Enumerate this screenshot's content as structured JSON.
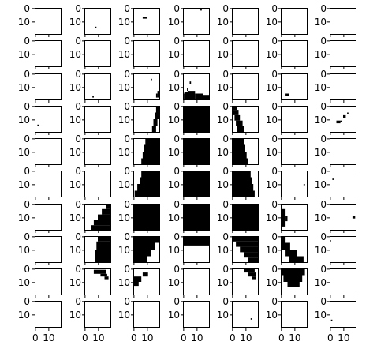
{
  "chart_data": {
    "type": "heatmap",
    "rows": 10,
    "cols": 7,
    "image_size": 20,
    "tick_labels": [
      "0",
      "10"
    ],
    "tick_values": [
      0,
      10
    ],
    "axis_range": [
      -0.5,
      19.5
    ],
    "title": "",
    "xlabel": "",
    "ylabel": "",
    "colormap": {
      "black_value": 1,
      "white_value": 0
    },
    "panels": [
      {
        "row": 0,
        "col": 0,
        "boxes": []
      },
      {
        "row": 0,
        "col": 1,
        "boxes": [
          [
            8,
            14,
            1,
            1
          ]
        ]
      },
      {
        "row": 0,
        "col": 2,
        "boxes": [
          [
            7,
            7,
            3,
            1
          ]
        ]
      },
      {
        "row": 0,
        "col": 3,
        "boxes": [
          [
            13,
            1,
            1,
            1
          ]
        ]
      },
      {
        "row": 0,
        "col": 4,
        "boxes": []
      },
      {
        "row": 0,
        "col": 5,
        "boxes": []
      },
      {
        "row": 0,
        "col": 6,
        "boxes": []
      },
      {
        "row": 1,
        "col": 0,
        "boxes": []
      },
      {
        "row": 1,
        "col": 1,
        "boxes": []
      },
      {
        "row": 1,
        "col": 2,
        "boxes": []
      },
      {
        "row": 1,
        "col": 3,
        "boxes": []
      },
      {
        "row": 1,
        "col": 4,
        "boxes": []
      },
      {
        "row": 1,
        "col": 5,
        "boxes": []
      },
      {
        "row": 1,
        "col": 6,
        "boxes": []
      },
      {
        "row": 2,
        "col": 0,
        "boxes": []
      },
      {
        "row": 2,
        "col": 1,
        "boxes": [
          [
            6,
            17,
            1,
            1
          ]
        ]
      },
      {
        "row": 2,
        "col": 2,
        "boxes": [
          [
            13,
            4,
            1,
            1
          ],
          [
            17,
            15,
            1,
            3
          ],
          [
            18,
            13,
            1,
            5
          ],
          [
            19,
            10,
            1,
            10
          ]
        ]
      },
      {
        "row": 2,
        "col": 3,
        "boxes": [
          [
            5,
            6,
            1,
            2
          ],
          [
            3,
            11,
            1,
            2
          ],
          [
            0,
            15,
            1,
            5
          ],
          [
            1,
            14,
            3,
            6
          ],
          [
            4,
            13,
            5,
            7
          ],
          [
            9,
            15,
            6,
            5
          ],
          [
            15,
            16,
            5,
            4
          ]
        ]
      },
      {
        "row": 2,
        "col": 4,
        "boxes": []
      },
      {
        "row": 2,
        "col": 5,
        "boxes": [
          [
            3,
            15,
            3,
            2
          ]
        ]
      },
      {
        "row": 2,
        "col": 6,
        "boxes": []
      },
      {
        "row": 3,
        "col": 0,
        "boxes": [
          [
            2,
            14,
            1,
            1
          ]
        ]
      },
      {
        "row": 3,
        "col": 1,
        "boxes": []
      },
      {
        "row": 3,
        "col": 2,
        "boxes": [
          [
            14,
            15,
            3,
            5
          ],
          [
            15,
            10,
            3,
            5
          ],
          [
            16,
            5,
            3,
            5
          ],
          [
            17,
            0,
            3,
            5
          ],
          [
            20,
            0,
            0,
            0
          ]
        ]
      },
      {
        "row": 3,
        "col": 3,
        "boxes": [
          [
            0,
            0,
            20,
            20
          ]
        ]
      },
      {
        "row": 3,
        "col": 4,
        "boxes": [
          [
            0,
            0,
            4,
            3
          ],
          [
            1,
            3,
            4,
            4
          ],
          [
            2,
            7,
            4,
            4
          ],
          [
            3,
            11,
            5,
            4
          ],
          [
            4,
            15,
            5,
            5
          ]
        ]
      },
      {
        "row": 3,
        "col": 5,
        "boxes": []
      },
      {
        "row": 3,
        "col": 6,
        "boxes": [
          [
            5,
            11,
            3,
            2
          ],
          [
            8,
            11,
            1,
            1
          ],
          [
            10,
            7,
            2,
            2
          ],
          [
            13,
            5,
            1,
            1
          ]
        ]
      },
      {
        "row": 4,
        "col": 0,
        "boxes": []
      },
      {
        "row": 4,
        "col": 1,
        "boxes": []
      },
      {
        "row": 4,
        "col": 2,
        "boxes": [
          [
            9,
            0,
            11,
            5
          ],
          [
            8,
            5,
            12,
            5
          ],
          [
            7,
            10,
            13,
            5
          ],
          [
            6,
            15,
            14,
            5
          ]
        ]
      },
      {
        "row": 4,
        "col": 3,
        "boxes": [
          [
            0,
            0,
            20,
            20
          ]
        ]
      },
      {
        "row": 4,
        "col": 4,
        "boxes": [
          [
            0,
            0,
            9,
            5
          ],
          [
            0,
            5,
            10,
            5
          ],
          [
            0,
            10,
            11,
            5
          ],
          [
            0,
            15,
            12,
            5
          ]
        ]
      },
      {
        "row": 4,
        "col": 5,
        "boxes": []
      },
      {
        "row": 4,
        "col": 6,
        "boxes": []
      },
      {
        "row": 5,
        "col": 0,
        "boxes": []
      },
      {
        "row": 5,
        "col": 1,
        "boxes": [
          [
            19,
            15,
            1,
            5
          ]
        ]
      },
      {
        "row": 5,
        "col": 2,
        "boxes": [
          [
            6,
            0,
            14,
            5
          ],
          [
            5,
            5,
            15,
            5
          ],
          [
            3,
            10,
            17,
            5
          ],
          [
            1,
            15,
            19,
            5
          ]
        ]
      },
      {
        "row": 5,
        "col": 3,
        "boxes": [
          [
            0,
            0,
            20,
            20
          ]
        ]
      },
      {
        "row": 5,
        "col": 4,
        "boxes": [
          [
            0,
            0,
            14,
            5
          ],
          [
            0,
            5,
            15,
            5
          ],
          [
            0,
            10,
            16,
            5
          ],
          [
            0,
            15,
            17,
            5
          ]
        ]
      },
      {
        "row": 5,
        "col": 5,
        "boxes": [
          [
            17,
            10,
            1,
            1
          ]
        ]
      },
      {
        "row": 5,
        "col": 6,
        "boxes": [
          [
            2,
            6,
            1,
            1
          ]
        ]
      },
      {
        "row": 6,
        "col": 0,
        "boxes": []
      },
      {
        "row": 6,
        "col": 1,
        "boxes": [
          [
            16,
            0,
            4,
            4
          ],
          [
            13,
            4,
            7,
            4
          ],
          [
            10,
            8,
            10,
            4
          ],
          [
            7,
            12,
            13,
            4
          ],
          [
            5,
            16,
            15,
            4
          ]
        ]
      },
      {
        "row": 6,
        "col": 2,
        "boxes": [
          [
            0,
            0,
            20,
            20
          ]
        ]
      },
      {
        "row": 6,
        "col": 3,
        "boxes": [
          [
            0,
            0,
            20,
            20
          ]
        ]
      },
      {
        "row": 6,
        "col": 4,
        "boxes": [
          [
            0,
            0,
            20,
            20
          ]
        ]
      },
      {
        "row": 6,
        "col": 5,
        "boxes": [
          [
            0,
            4,
            3,
            13
          ],
          [
            3,
            9,
            2,
            4
          ]
        ]
      },
      {
        "row": 6,
        "col": 6,
        "boxes": [
          [
            17,
            9,
            2,
            2
          ]
        ]
      },
      {
        "row": 7,
        "col": 0,
        "boxes": []
      },
      {
        "row": 7,
        "col": 1,
        "boxes": [
          [
            10,
            0,
            10,
            4
          ],
          [
            9,
            4,
            11,
            6
          ],
          [
            8,
            10,
            12,
            10
          ]
        ]
      },
      {
        "row": 7,
        "col": 2,
        "boxes": [
          [
            0,
            0,
            20,
            5
          ],
          [
            0,
            5,
            16,
            5
          ],
          [
            0,
            10,
            13,
            5
          ],
          [
            0,
            15,
            10,
            5
          ]
        ]
      },
      {
        "row": 7,
        "col": 3,
        "boxes": [
          [
            0,
            0,
            20,
            7
          ]
        ]
      },
      {
        "row": 7,
        "col": 4,
        "boxes": [
          [
            0,
            0,
            20,
            4
          ],
          [
            3,
            4,
            17,
            4
          ],
          [
            6,
            8,
            14,
            4
          ],
          [
            9,
            12,
            11,
            4
          ],
          [
            12,
            16,
            8,
            4
          ]
        ]
      },
      {
        "row": 7,
        "col": 5,
        "boxes": [
          [
            0,
            0,
            3,
            5
          ],
          [
            1,
            5,
            6,
            5
          ],
          [
            3,
            10,
            9,
            5
          ],
          [
            6,
            15,
            11,
            5
          ]
        ]
      },
      {
        "row": 7,
        "col": 6,
        "boxes": [
          [
            0,
            3,
            1,
            1
          ]
        ]
      },
      {
        "row": 8,
        "col": 0,
        "boxes": []
      },
      {
        "row": 8,
        "col": 1,
        "boxes": [
          [
            7,
            1,
            9,
            3
          ],
          [
            12,
            4,
            5,
            2
          ],
          [
            15,
            6,
            3,
            2
          ]
        ]
      },
      {
        "row": 8,
        "col": 2,
        "boxes": [
          [
            0,
            6,
            6,
            4
          ],
          [
            0,
            10,
            4,
            3
          ],
          [
            7,
            3,
            4,
            3
          ]
        ]
      },
      {
        "row": 8,
        "col": 3,
        "boxes": []
      },
      {
        "row": 8,
        "col": 4,
        "boxes": [
          [
            9,
            0,
            8,
            3
          ],
          [
            12,
            3,
            6,
            3
          ],
          [
            15,
            6,
            3,
            2
          ]
        ]
      },
      {
        "row": 8,
        "col": 5,
        "boxes": [
          [
            0,
            0,
            18,
            5
          ],
          [
            2,
            5,
            14,
            5
          ],
          [
            5,
            10,
            9,
            4
          ]
        ]
      },
      {
        "row": 8,
        "col": 6,
        "boxes": []
      },
      {
        "row": 9,
        "col": 0,
        "boxes": []
      },
      {
        "row": 9,
        "col": 1,
        "boxes": []
      },
      {
        "row": 9,
        "col": 2,
        "boxes": []
      },
      {
        "row": 9,
        "col": 3,
        "boxes": []
      },
      {
        "row": 9,
        "col": 4,
        "boxes": [
          [
            14,
            13,
            1,
            1
          ]
        ]
      },
      {
        "row": 9,
        "col": 5,
        "boxes": []
      },
      {
        "row": 9,
        "col": 6,
        "boxes": [
          [
            1,
            14,
            1,
            1
          ]
        ]
      }
    ]
  }
}
